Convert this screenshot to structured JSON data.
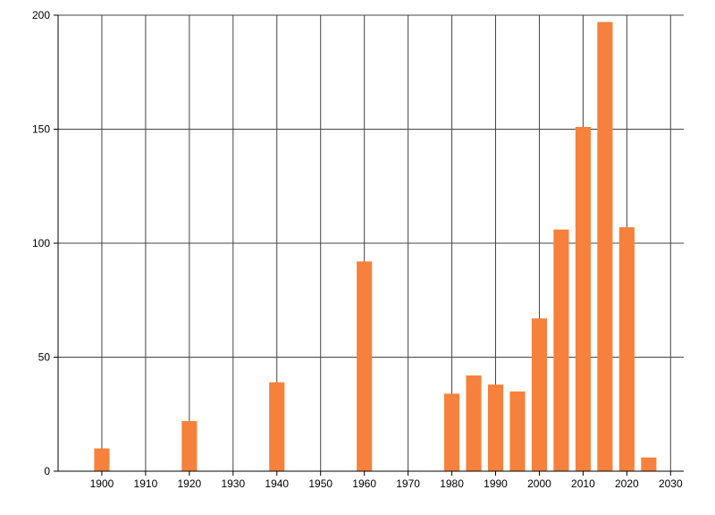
{
  "chart_data": {
    "type": "bar",
    "title": "",
    "xlabel": "",
    "ylabel": "",
    "x": [
      1900,
      1920,
      1940,
      1960,
      1980,
      1985,
      1990,
      1995,
      2000,
      2005,
      2010,
      2015,
      2020,
      2025
    ],
    "values": [
      10,
      22,
      39,
      92,
      34,
      42,
      38,
      35,
      67,
      106,
      151,
      197,
      107,
      6
    ],
    "bar_width_years": 3.5,
    "xlim": [
      1890,
      2033
    ],
    "ylim": [
      0,
      200
    ],
    "x_ticks": [
      1900,
      1910,
      1920,
      1930,
      1940,
      1950,
      1960,
      1970,
      1980,
      1990,
      2000,
      2010,
      2020,
      2030
    ],
    "y_ticks": [
      0,
      50,
      100,
      150,
      200
    ],
    "grid": true,
    "legend": "none",
    "bar_color": "#f6813c",
    "grid_color": "#444444",
    "axis_color": "#000000",
    "background": "#ffffff"
  }
}
